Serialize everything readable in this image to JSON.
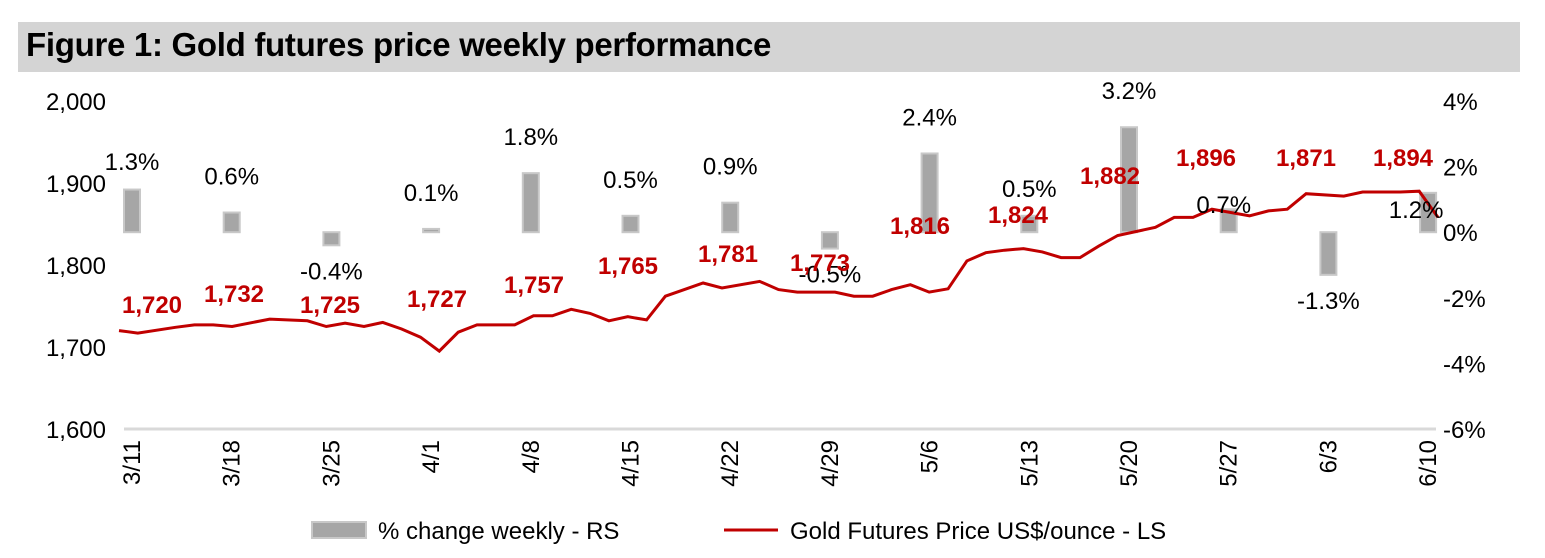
{
  "header": {
    "title": "Figure 1: Gold futures price weekly performance"
  },
  "colors": {
    "bar_fill": "#a6a6a6",
    "bar_stroke": "#c8c8c8",
    "line": "#c00000",
    "price_label": "#c00000",
    "gridline": "#d9d9d9",
    "title_background": "#d4d4d4"
  },
  "chart_data": {
    "type": "bar+line",
    "title": "Figure 1: Gold futures price weekly performance",
    "xlabel": "",
    "categories": [
      "3/11",
      "3/18",
      "3/25",
      "4/1",
      "4/8",
      "4/15",
      "4/22",
      "4/29",
      "5/6",
      "5/13",
      "5/20",
      "5/27",
      "6/3",
      "6/10"
    ],
    "left_axis": {
      "label": "Gold Futures Price US$/ounce",
      "ylim": [
        1600,
        2000
      ],
      "ticks": [
        "1,600",
        "1,700",
        "1,800",
        "1,900",
        "2,000"
      ],
      "tick_values": [
        1600,
        1700,
        1800,
        1900,
        2000
      ]
    },
    "right_axis": {
      "label": "% change weekly",
      "ylim": [
        -6,
        4
      ],
      "ticks": [
        "-6%",
        "-4%",
        "-2%",
        "0%",
        "2%",
        "4%"
      ],
      "tick_values": [
        -6,
        -4,
        -2,
        0,
        2,
        4
      ]
    },
    "series": [
      {
        "name": "% change weekly - RS",
        "type": "bar",
        "axis": "right",
        "values": [
          1.3,
          0.6,
          -0.4,
          0.1,
          1.8,
          0.5,
          0.9,
          -0.5,
          2.4,
          0.5,
          3.2,
          0.7,
          -1.3,
          1.2
        ],
        "labels": [
          "1.3%",
          "0.6%",
          "-0.4%",
          "0.1%",
          "1.8%",
          "0.5%",
          "0.9%",
          "-0.5%",
          "2.4%",
          "0.5%",
          "3.2%",
          "0.7%",
          "-1.3%",
          "1.2%"
        ]
      },
      {
        "name": "Gold Futures Price US$/ounce - LS",
        "type": "line",
        "axis": "left",
        "weekly_values": [
          1720,
          1732,
          1725,
          1727,
          1757,
          1765,
          1781,
          1773,
          1816,
          1824,
          1882,
          1896,
          1871,
          1894
        ],
        "labels": [
          "1,720",
          "1,732",
          "1,725",
          "1,727",
          "1,757",
          "1,765",
          "1,781",
          "1,773",
          "1,816",
          "1,824",
          "1,882",
          "1,896",
          "1,871",
          "1,894"
        ],
        "daily_x": [
          0,
          0.2,
          0.6,
          0.8,
          1.0,
          1.2,
          1.6,
          2.0,
          2.2,
          2.4,
          2.6,
          2.8,
          3.0,
          3.2,
          3.4,
          3.6,
          3.8,
          4.0,
          4.2,
          4.4,
          4.6,
          4.8,
          5.0,
          5.2,
          5.4,
          5.6,
          5.8,
          6.0,
          6.2,
          6.4,
          6.8,
          7.0,
          7.2,
          7.4,
          7.6,
          7.8,
          8.0,
          8.2,
          8.4,
          8.6,
          8.8,
          9.0,
          9.2,
          9.4,
          9.6,
          9.8,
          10.0,
          10.2,
          10.4,
          10.6,
          11.0,
          11.2,
          11.4,
          11.6,
          12.0,
          12.2,
          12.4,
          12.6,
          13.0,
          13.2,
          13.4,
          13.6,
          13.8,
          14.0
        ],
        "daily_values": [
          1720,
          1717,
          1724,
          1727,
          1727,
          1725,
          1734,
          1732,
          1725,
          1729,
          1725,
          1730,
          1722,
          1712,
          1695,
          1718,
          1727,
          1727,
          1727,
          1738,
          1738,
          1746,
          1741,
          1732,
          1737,
          1733,
          1762,
          1770,
          1778,
          1772,
          1780,
          1770,
          1767,
          1767,
          1767,
          1762,
          1762,
          1770,
          1776,
          1767,
          1771,
          1805,
          1815,
          1818,
          1820,
          1816,
          1809,
          1809,
          1823,
          1836,
          1846,
          1858,
          1858,
          1868,
          1860,
          1866,
          1868,
          1887,
          1884,
          1889,
          1889,
          1889,
          1890,
          1858
        ]
      }
    ],
    "legend": [
      "% change weekly - RS",
      "Gold Futures Price US$/ounce - LS"
    ],
    "legend_position": "bottom",
    "grid": false
  },
  "legend": {
    "bars_label": "% change weekly - RS",
    "line_label": "Gold Futures Price US$/ounce - LS"
  }
}
